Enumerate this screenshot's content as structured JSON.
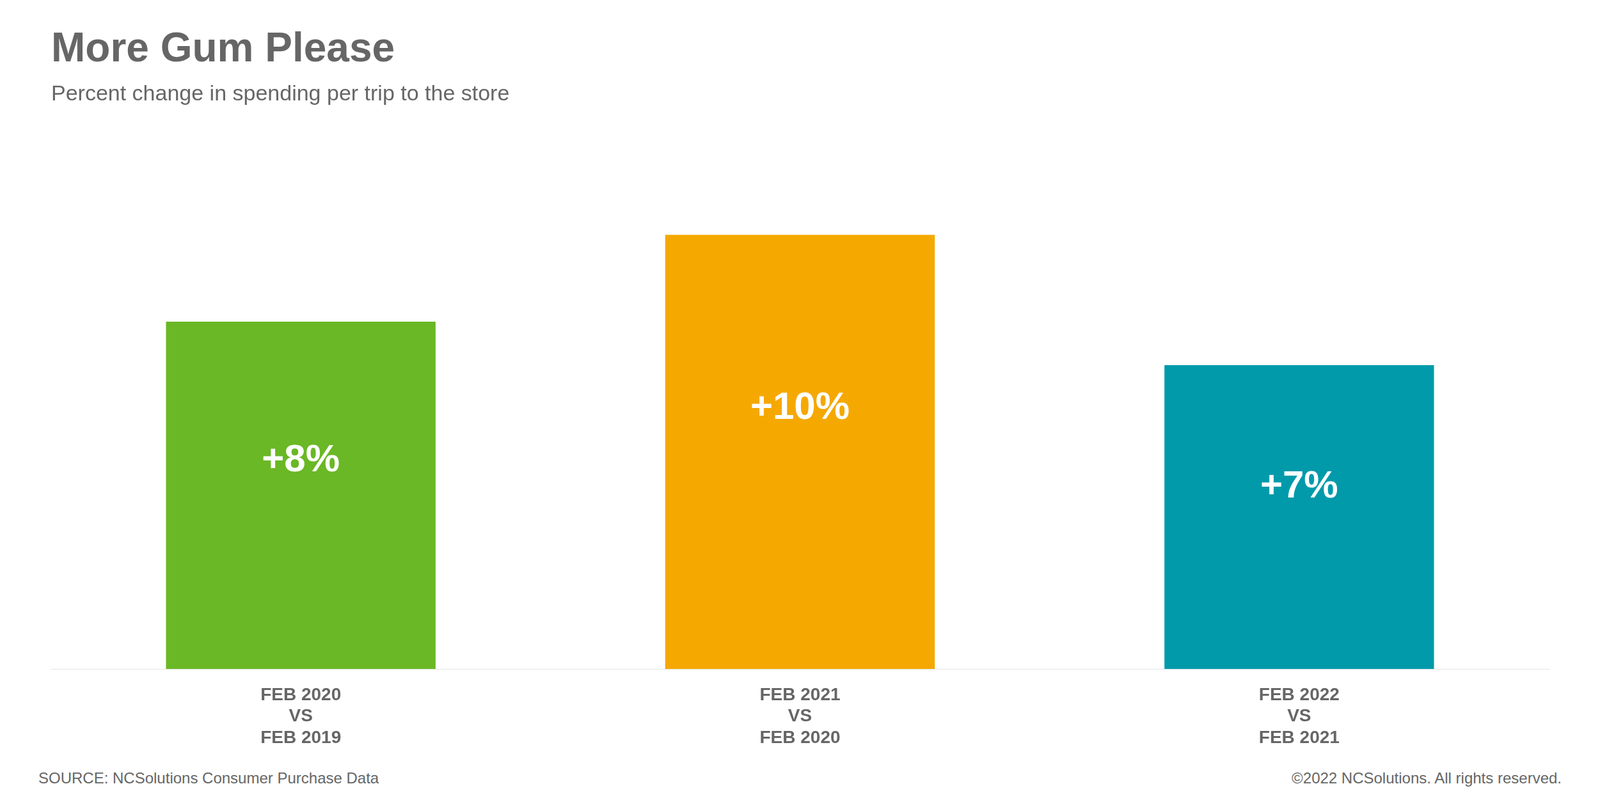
{
  "chart_data": {
    "type": "bar",
    "title": "More Gum Please",
    "subtitle": "Percent change in spending per trip to the store",
    "categories": [
      "FEB 2020\nVS\nFEB 2019",
      "FEB 2021\nVS\nFEB 2020",
      "FEB 2022\nVS\nFEB 2021"
    ],
    "values": [
      8,
      10,
      7
    ],
    "value_labels": [
      "+8%",
      "+10%",
      "+7%"
    ],
    "data_labels": true,
    "colors": [
      "#6ab825",
      "#f5a800",
      "#009aaa"
    ],
    "ylim": [
      0,
      12.5
    ],
    "tick_labels": "x",
    "grid": false,
    "annotations": [
      "SOURCE: NCSolutions Consumer Purchase Data",
      "©2022 NCSolutions. All rights reserved."
    ]
  }
}
